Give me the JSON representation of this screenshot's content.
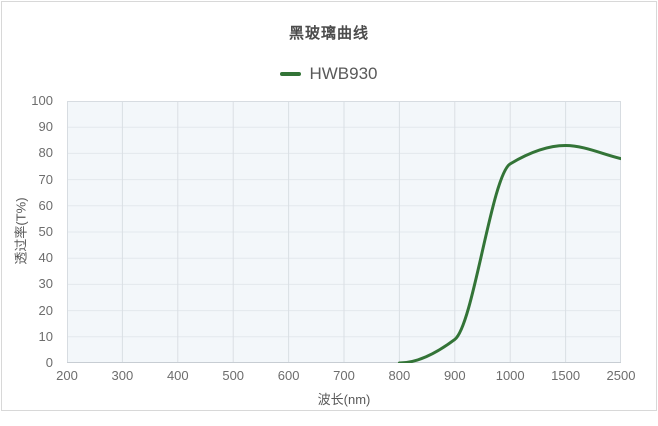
{
  "card": {
    "border_color": "#d8d8d8",
    "background": "#ffffff"
  },
  "chart_data": {
    "type": "line",
    "title": "黑玻璃曲线",
    "xlabel": "波长(nm)",
    "ylabel": "透过率(T%)",
    "categories": [
      "200",
      "300",
      "400",
      "500",
      "600",
      "700",
      "800",
      "900",
      "1000",
      "1500",
      "2500"
    ],
    "series": [
      {
        "name": "HWB930",
        "color": "#337437",
        "values": [
          null,
          null,
          null,
          null,
          null,
          null,
          0,
          9,
          76,
          83,
          78
        ]
      }
    ],
    "ylim": [
      0,
      100
    ],
    "y_ticks": [
      0,
      10,
      20,
      30,
      40,
      50,
      60,
      70,
      80,
      90,
      100
    ],
    "grid": true,
    "legend_position": "top",
    "smooth": true,
    "plot_bg": "#f3f7fa",
    "h_grid_color": "#e3e8ed",
    "v_grid_color": "#dadfe4",
    "plot_border_color": "#d7dce1",
    "axis_line_color": "#c7cdd3",
    "title_color": "#4c4c4c",
    "legend_text_color": "#595959",
    "tick_text_color": "#6d6d6d"
  }
}
